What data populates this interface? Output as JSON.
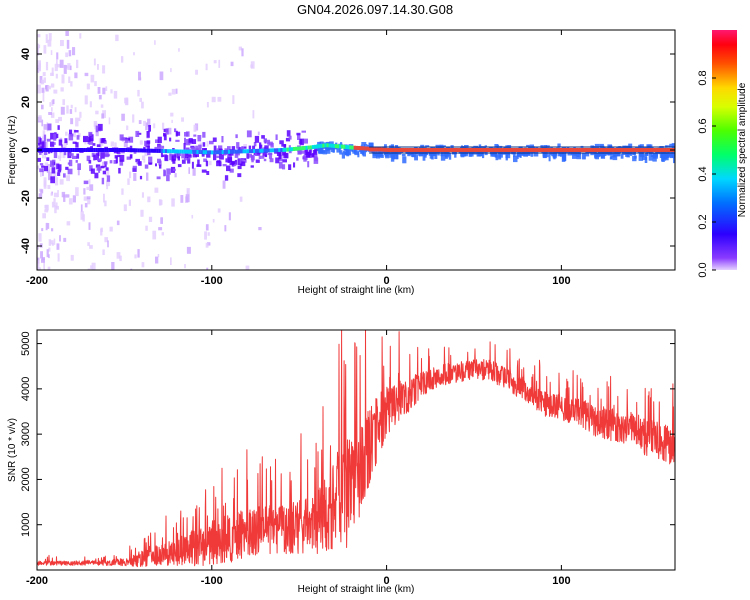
{
  "title": "GN04.2026.097.14.30.G08",
  "colors": {
    "snr_line": "#f03a3a",
    "ridge": "#e8483a",
    "background": "#ffffff"
  },
  "chart_data": [
    {
      "type": "heatmap",
      "name": "spectrogram",
      "xlabel": "Height of straight line (km)",
      "ylabel": "Frequency (Hz)",
      "xlim": [
        -200,
        165
      ],
      "ylim": [
        -50,
        50
      ],
      "xticks": [
        -200,
        -100,
        0,
        100
      ],
      "yticks": [
        -40,
        -20,
        0,
        20,
        40
      ],
      "ridge": {
        "x": [
          -200,
          -150,
          -100,
          -60,
          -45,
          -35,
          -20,
          0,
          50,
          100,
          150,
          165
        ],
        "freq": [
          0,
          0,
          -1,
          0,
          1,
          2,
          1,
          0,
          0,
          0,
          0,
          0
        ]
      },
      "colorbar": {
        "label": "Normalized spectral amplitude",
        "range": [
          0.0,
          1.0
        ],
        "ticks": [
          0.0,
          0.2,
          0.4,
          0.6,
          0.8
        ]
      }
    },
    {
      "type": "line",
      "name": "snr",
      "xlabel": "Height of straight line (km)",
      "ylabel": "SNR (10 * v/v)",
      "xlim": [
        -200,
        165
      ],
      "ylim": [
        0,
        5300
      ],
      "xticks": [
        -200,
        -100,
        0,
        100
      ],
      "yticks": [
        1000,
        2000,
        3000,
        4000,
        5000
      ],
      "series": [
        {
          "name": "SNR",
          "x": [
            -200,
            -180,
            -160,
            -150,
            -140,
            -130,
            -120,
            -110,
            -100,
            -90,
            -80,
            -70,
            -60,
            -50,
            -40,
            -35,
            -30,
            -25,
            -20,
            -15,
            -10,
            -5,
            0,
            10,
            20,
            30,
            40,
            50,
            60,
            70,
            80,
            90,
            100,
            110,
            120,
            130,
            140,
            150,
            160,
            165
          ],
          "baseline": [
            150,
            150,
            160,
            170,
            250,
            350,
            400,
            500,
            600,
            700,
            800,
            900,
            900,
            950,
            1000,
            1200,
            1400,
            1600,
            1800,
            2200,
            2700,
            3200,
            3500,
            3800,
            4100,
            4300,
            4350,
            4450,
            4400,
            4200,
            3900,
            3700,
            3600,
            3500,
            3300,
            3200,
            3100,
            2900,
            2800,
            2700
          ],
          "spread": [
            80,
            80,
            100,
            150,
            300,
            400,
            500,
            700,
            800,
            900,
            900,
            900,
            900,
            1000,
            1200,
            1400,
            1800,
            2000,
            2000,
            1800,
            1500,
            1200,
            900,
            700,
            500,
            400,
            400,
            400,
            400,
            400,
            400,
            500,
            500,
            500,
            600,
            600,
            600,
            700,
            700,
            700
          ]
        }
      ]
    }
  ]
}
